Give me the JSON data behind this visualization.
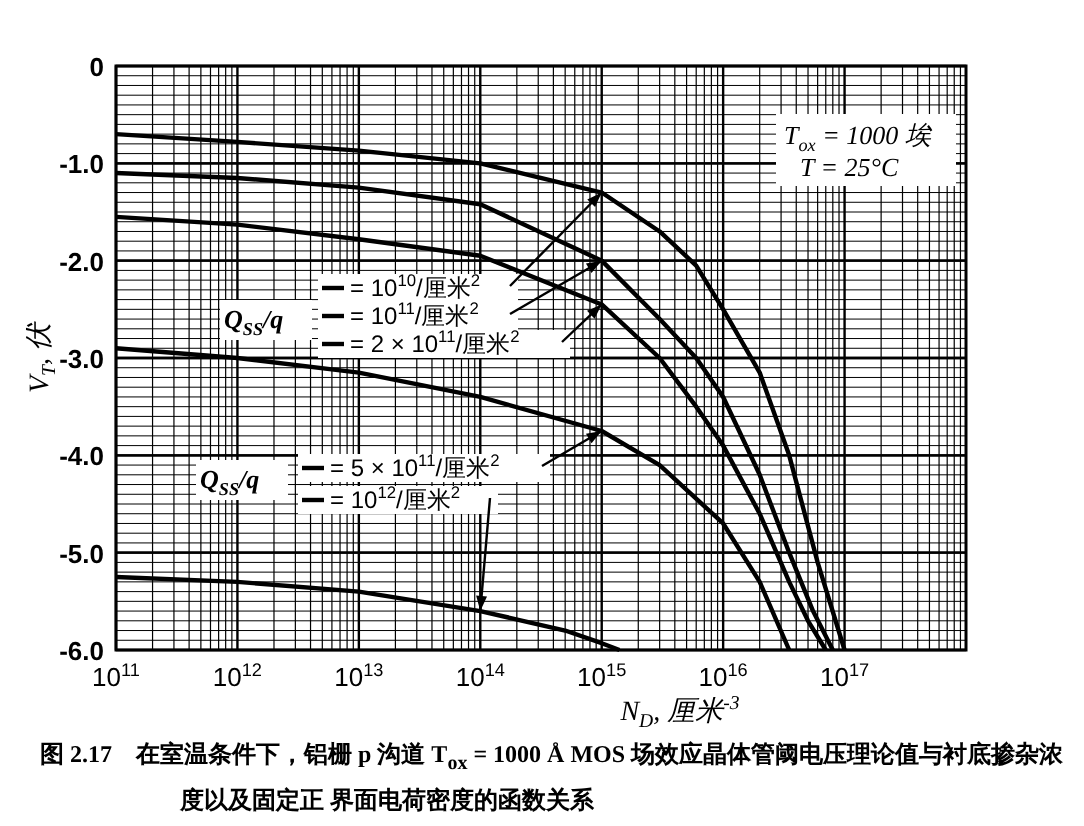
{
  "chart_data": {
    "type": "line",
    "xlabel": "N$_{D}$, 厘米$^{-3}$",
    "ylabel": "V$_{T}$, 伏",
    "annotations": [
      "T$_{ox}$ = 1000 埃",
      "T = 25°C",
      "Q$_{SS}$/q",
      "Q$_{SS}$/q",
      "图 2.17　在室温条件下，铝栅 p 沟道 T$_{ox}$ = 1000 Å MOS 场效应晶体管阈电压理论值与衬底掺杂浓度以及固定正 界面电荷密度的函数关系"
    ],
    "log": "x",
    "grid": true,
    "legend": "center",
    "marker": "none",
    "line_style": "solid",
    "xlim": [
      100000000000.0,
      1e+18
    ],
    "ylim": [
      -6,
      0
    ],
    "xticks": [
      {
        "value": 100000000000.0,
        "label": "10$^{11}$"
      },
      {
        "value": 1000000000000.0,
        "label": "10$^{12}$"
      },
      {
        "value": 10000000000000.0,
        "label": "10$^{13}$"
      },
      {
        "value": 100000000000000.0,
        "label": "10$^{14}$"
      },
      {
        "value": 1000000000000000.0,
        "label": "10$^{15}$"
      },
      {
        "value": 1e+16,
        "label": "10$^{16}$"
      },
      {
        "value": 1e+17,
        "label": "10$^{17}$"
      }
    ],
    "yticks": [
      0,
      {
        "value": -1,
        "label": "-1.0"
      },
      {
        "value": -2,
        "label": "-2.0"
      },
      {
        "value": -3,
        "label": "-3.0"
      },
      {
        "value": -4,
        "label": "-4.0"
      },
      {
        "value": -5,
        "label": "-5.0"
      },
      {
        "value": -6,
        "label": "-6.0"
      }
    ],
    "series": [
      {
        "name": "= 10$^{10}$/厘米$^{2}$",
        "color": "#000000",
        "x": [
          100000000000.0,
          1000000000000.0,
          10000000000000.0,
          100000000000000.0,
          1000000000000000.0,
          3000000000000000.0,
          6000000000000000.0,
          1e+16,
          2e+16,
          3.5e+16,
          6e+16,
          1e+17
        ],
        "values": [
          -0.7,
          -0.78,
          -0.87,
          -1.0,
          -1.3,
          -1.7,
          -2.05,
          -2.5,
          -3.15,
          -4.0,
          -5.1,
          -6.0
        ]
      },
      {
        "name": "= 10$^{11}$/厘米$^{2}$",
        "color": "#000000",
        "x": [
          100000000000.0,
          1000000000000.0,
          10000000000000.0,
          100000000000000.0,
          1000000000000000.0,
          3000000000000000.0,
          6000000000000000.0,
          1e+16,
          2e+16,
          3.5e+16,
          5.5e+16,
          8e+16
        ],
        "values": [
          -1.1,
          -1.15,
          -1.25,
          -1.42,
          -2.0,
          -2.6,
          -3.0,
          -3.4,
          -4.2,
          -5.0,
          -5.6,
          -6.0
        ]
      },
      {
        "name": "= 2 × 10$^{11}$/厘米$^{2}$",
        "color": "#000000",
        "x": [
          100000000000.0,
          1000000000000.0,
          10000000000000.0,
          100000000000000.0,
          1000000000000000.0,
          3000000000000000.0,
          6000000000000000.0,
          1e+16,
          2e+16,
          3.5e+16,
          5e+16,
          7e+16
        ],
        "values": [
          -1.55,
          -1.63,
          -1.78,
          -1.95,
          -2.45,
          -3.0,
          -3.5,
          -3.9,
          -4.6,
          -5.3,
          -5.7,
          -6.0
        ]
      },
      {
        "name": "= 5 × 10$^{11}$/厘米$^{2}$",
        "color": "#000000",
        "x": [
          100000000000.0,
          1000000000000.0,
          10000000000000.0,
          100000000000000.0,
          1000000000000000.0,
          3000000000000000.0,
          1e+16,
          2e+16,
          3.5e+16
        ],
        "values": [
          -2.9,
          -3.0,
          -3.15,
          -3.4,
          -3.75,
          -4.1,
          -4.7,
          -5.3,
          -6.0
        ]
      },
      {
        "name": "= 10$^{12}$/厘米$^{2}$",
        "color": "#000000",
        "x": [
          100000000000.0,
          1000000000000.0,
          10000000000000.0,
          100000000000000.0,
          500000000000000.0,
          1000000000000000.0,
          1400000000000000.0
        ],
        "values": [
          -5.25,
          -5.3,
          -5.4,
          -5.6,
          -5.8,
          -5.93,
          -6.0
        ]
      }
    ]
  }
}
